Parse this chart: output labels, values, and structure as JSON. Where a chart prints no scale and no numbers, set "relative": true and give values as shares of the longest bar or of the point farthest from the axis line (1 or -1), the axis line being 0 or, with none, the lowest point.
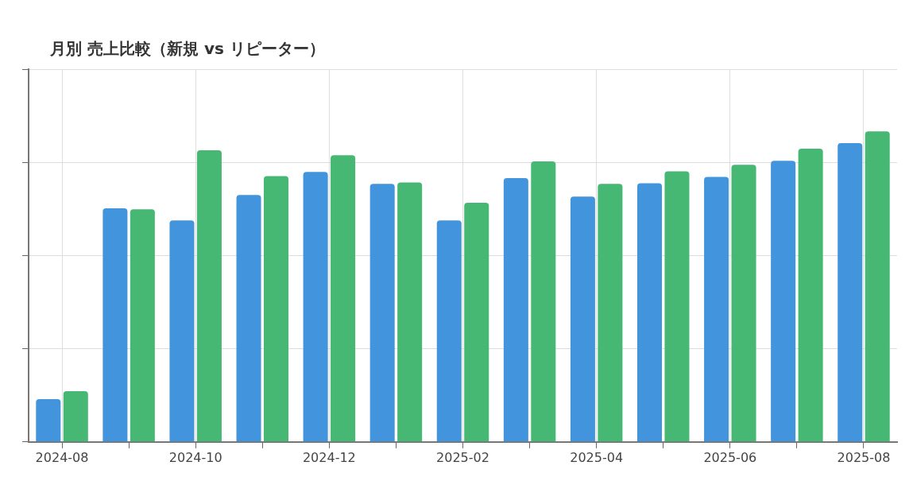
{
  "chart_data": {
    "type": "bar",
    "title": "月別 売上比較（新規 vs リピーター）",
    "relative": true,
    "grid": true,
    "legend": false,
    "categories": [
      "2024-08",
      null,
      "2024-10",
      null,
      "2024-12",
      null,
      "2025-02",
      null,
      "2025-04",
      null,
      "2025-06",
      null,
      "2025-08"
    ],
    "series": [
      {
        "color": "#4295dd",
        "values": [
          0.138,
          0.752,
          0.713,
          0.795,
          0.869,
          0.831,
          0.713,
          0.849,
          0.79,
          0.833,
          0.853,
          0.905,
          0.962
        ]
      },
      {
        "color": "#46b874",
        "values": [
          0.163,
          0.749,
          0.939,
          0.856,
          0.923,
          0.835,
          0.77,
          0.903,
          0.831,
          0.871,
          0.892,
          0.944,
          1
        ]
      }
    ]
  }
}
